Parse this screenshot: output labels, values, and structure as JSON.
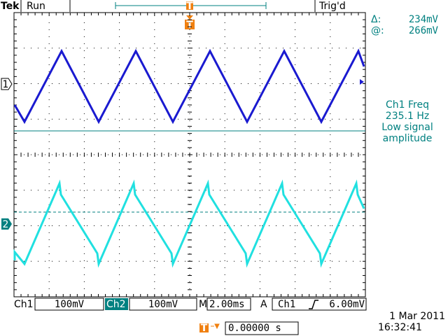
{
  "header": {
    "brand": "Tek",
    "status": "Run",
    "trigger_state": "Trig'd",
    "trigger_marker": "T"
  },
  "readout": {
    "delta_label": "Δ:",
    "delta_value": "234mV",
    "at_label": "@:",
    "at_value": "266mV"
  },
  "message": {
    "lines": [
      "Ch1 Freq",
      "235.1 Hz",
      "Low signal",
      "amplitude"
    ]
  },
  "channel_markers": [
    "1",
    "2"
  ],
  "status_bar": {
    "ch1_label": "Ch1",
    "ch1_scale": "100mV",
    "ch2_label": "Ch2",
    "ch2_scale": "100mV",
    "timebase_label": "M",
    "timebase": "2.00ms",
    "trigger_mode": "A",
    "trigger_source": "Ch1",
    "trigger_level": "6.00mV"
  },
  "footer": {
    "trigger_icon": "T",
    "position": "0.00000 s",
    "date": "1 Mar 2011",
    "time": "16:32:41"
  }
}
